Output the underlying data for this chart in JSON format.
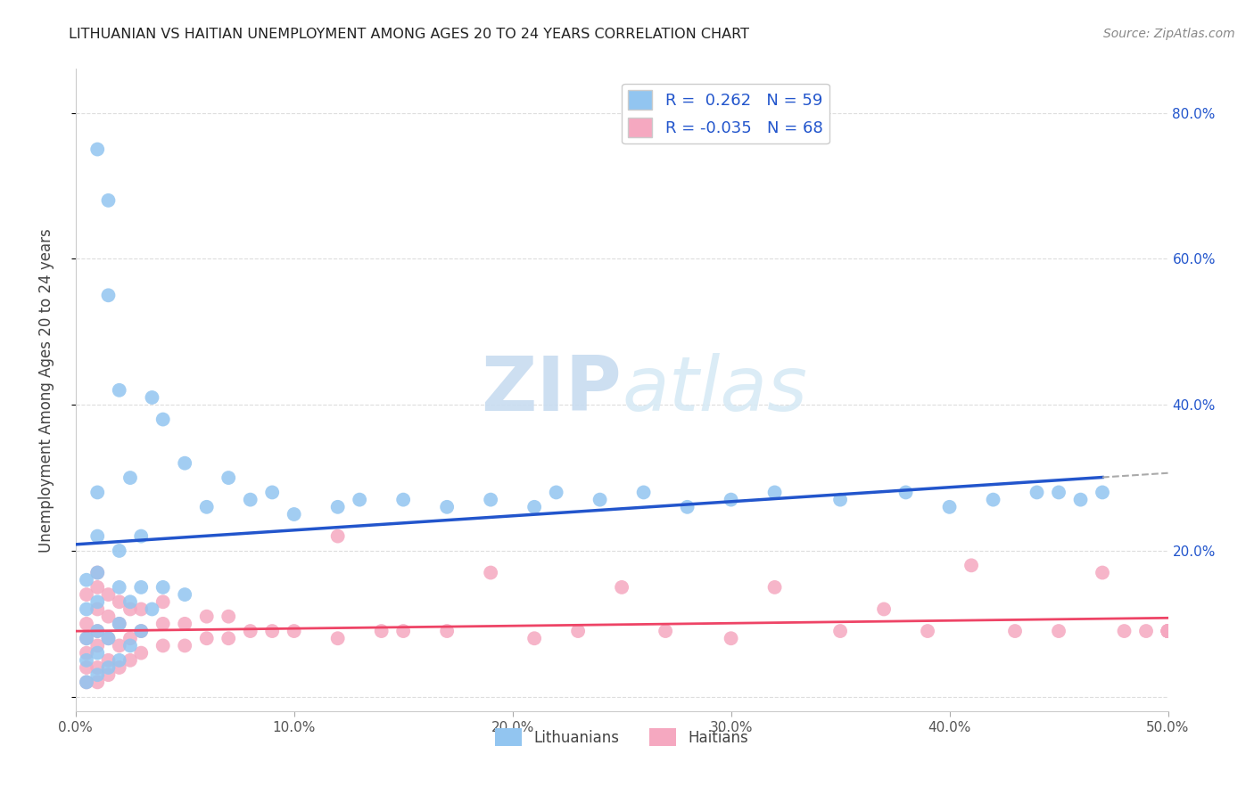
{
  "title": "LITHUANIAN VS HAITIAN UNEMPLOYMENT AMONG AGES 20 TO 24 YEARS CORRELATION CHART",
  "source": "Source: ZipAtlas.com",
  "ylabel": "Unemployment Among Ages 20 to 24 years",
  "xlim": [
    0.0,
    0.5
  ],
  "ylim": [
    -0.02,
    0.86
  ],
  "xticks": [
    0.0,
    0.1,
    0.2,
    0.3,
    0.4,
    0.5
  ],
  "yticks": [
    0.0,
    0.2,
    0.4,
    0.6,
    0.8
  ],
  "xticklabels": [
    "0.0%",
    "10.0%",
    "20.0%",
    "30.0%",
    "40.0%",
    "50.0%"
  ],
  "yticklabels_right": [
    "",
    "20.0%",
    "40.0%",
    "60.0%",
    "80.0%"
  ],
  "blue_color": "#92C5F0",
  "pink_color": "#F5A8C0",
  "blue_line_color": "#2255CC",
  "pink_line_color": "#EE4466",
  "gray_dash_color": "#AAAAAA",
  "watermark_color": "#D8E8F5",
  "legend_R_color": "#2255CC",
  "R_blue": 0.262,
  "N_blue": 59,
  "R_pink": -0.035,
  "N_pink": 68,
  "lit_x": [
    0.005,
    0.005,
    0.005,
    0.005,
    0.005,
    0.01,
    0.01,
    0.01,
    0.01,
    0.01,
    0.01,
    0.01,
    0.01,
    0.015,
    0.015,
    0.015,
    0.015,
    0.02,
    0.02,
    0.02,
    0.02,
    0.02,
    0.025,
    0.025,
    0.025,
    0.03,
    0.03,
    0.03,
    0.035,
    0.035,
    0.04,
    0.04,
    0.05,
    0.05,
    0.06,
    0.07,
    0.08,
    0.09,
    0.1,
    0.12,
    0.13,
    0.15,
    0.17,
    0.19,
    0.21,
    0.22,
    0.24,
    0.26,
    0.28,
    0.3,
    0.32,
    0.35,
    0.38,
    0.4,
    0.42,
    0.44,
    0.45,
    0.46,
    0.47
  ],
  "lit_y": [
    0.02,
    0.05,
    0.08,
    0.12,
    0.16,
    0.03,
    0.06,
    0.09,
    0.13,
    0.17,
    0.22,
    0.28,
    0.75,
    0.04,
    0.08,
    0.55,
    0.68,
    0.05,
    0.1,
    0.15,
    0.42,
    0.2,
    0.07,
    0.13,
    0.3,
    0.09,
    0.15,
    0.22,
    0.12,
    0.41,
    0.15,
    0.38,
    0.14,
    0.32,
    0.26,
    0.3,
    0.27,
    0.28,
    0.25,
    0.26,
    0.27,
    0.27,
    0.26,
    0.27,
    0.26,
    0.28,
    0.27,
    0.28,
    0.26,
    0.27,
    0.28,
    0.27,
    0.28,
    0.26,
    0.27,
    0.28,
    0.28,
    0.27,
    0.28
  ],
  "hait_x": [
    0.005,
    0.005,
    0.005,
    0.005,
    0.005,
    0.005,
    0.01,
    0.01,
    0.01,
    0.01,
    0.01,
    0.01,
    0.01,
    0.015,
    0.015,
    0.015,
    0.015,
    0.015,
    0.02,
    0.02,
    0.02,
    0.02,
    0.025,
    0.025,
    0.025,
    0.03,
    0.03,
    0.03,
    0.04,
    0.04,
    0.04,
    0.05,
    0.05,
    0.06,
    0.06,
    0.07,
    0.07,
    0.08,
    0.09,
    0.1,
    0.12,
    0.12,
    0.14,
    0.15,
    0.17,
    0.19,
    0.21,
    0.23,
    0.25,
    0.27,
    0.3,
    0.32,
    0.35,
    0.37,
    0.39,
    0.41,
    0.43,
    0.45,
    0.47,
    0.48,
    0.49,
    0.5,
    0.5,
    0.5,
    0.5,
    0.5,
    0.5,
    0.5
  ],
  "hait_y": [
    0.02,
    0.04,
    0.06,
    0.08,
    0.1,
    0.14,
    0.02,
    0.04,
    0.07,
    0.09,
    0.12,
    0.15,
    0.17,
    0.03,
    0.05,
    0.08,
    0.11,
    0.14,
    0.04,
    0.07,
    0.1,
    0.13,
    0.05,
    0.08,
    0.12,
    0.06,
    0.09,
    0.12,
    0.07,
    0.1,
    0.13,
    0.07,
    0.1,
    0.08,
    0.11,
    0.08,
    0.11,
    0.09,
    0.09,
    0.09,
    0.08,
    0.22,
    0.09,
    0.09,
    0.09,
    0.17,
    0.08,
    0.09,
    0.15,
    0.09,
    0.08,
    0.15,
    0.09,
    0.12,
    0.09,
    0.18,
    0.09,
    0.09,
    0.17,
    0.09,
    0.09,
    0.09,
    0.09,
    0.09,
    0.09,
    0.09,
    0.09,
    0.09
  ]
}
